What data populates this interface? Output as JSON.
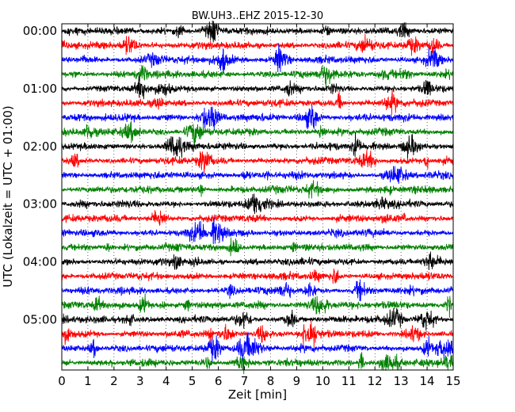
{
  "chart_data": {
    "type": "line",
    "title": "BW.UH3..EHZ 2015-12-30",
    "xlabel": "Zeit  [min]",
    "ylabel": "UTC (Lokalzeit = UTC + 01:00)",
    "xlim": [
      0,
      15
    ],
    "x_ticks": [
      "0",
      "1",
      "2",
      "3",
      "4",
      "5",
      "6",
      "7",
      "8",
      "9",
      "10",
      "11",
      "12",
      "13",
      "14",
      "15"
    ],
    "y_tick_labels": [
      "00:00",
      "01:00",
      "02:00",
      "03:00",
      "04:00",
      "05:00"
    ],
    "trace_interval_min": 15,
    "trace_count": 24,
    "trace_colors": [
      "#000000",
      "#ff0000",
      "#0000ff",
      "#008000"
    ],
    "grid": "vertical dotted at each minute",
    "legend": "none"
  }
}
